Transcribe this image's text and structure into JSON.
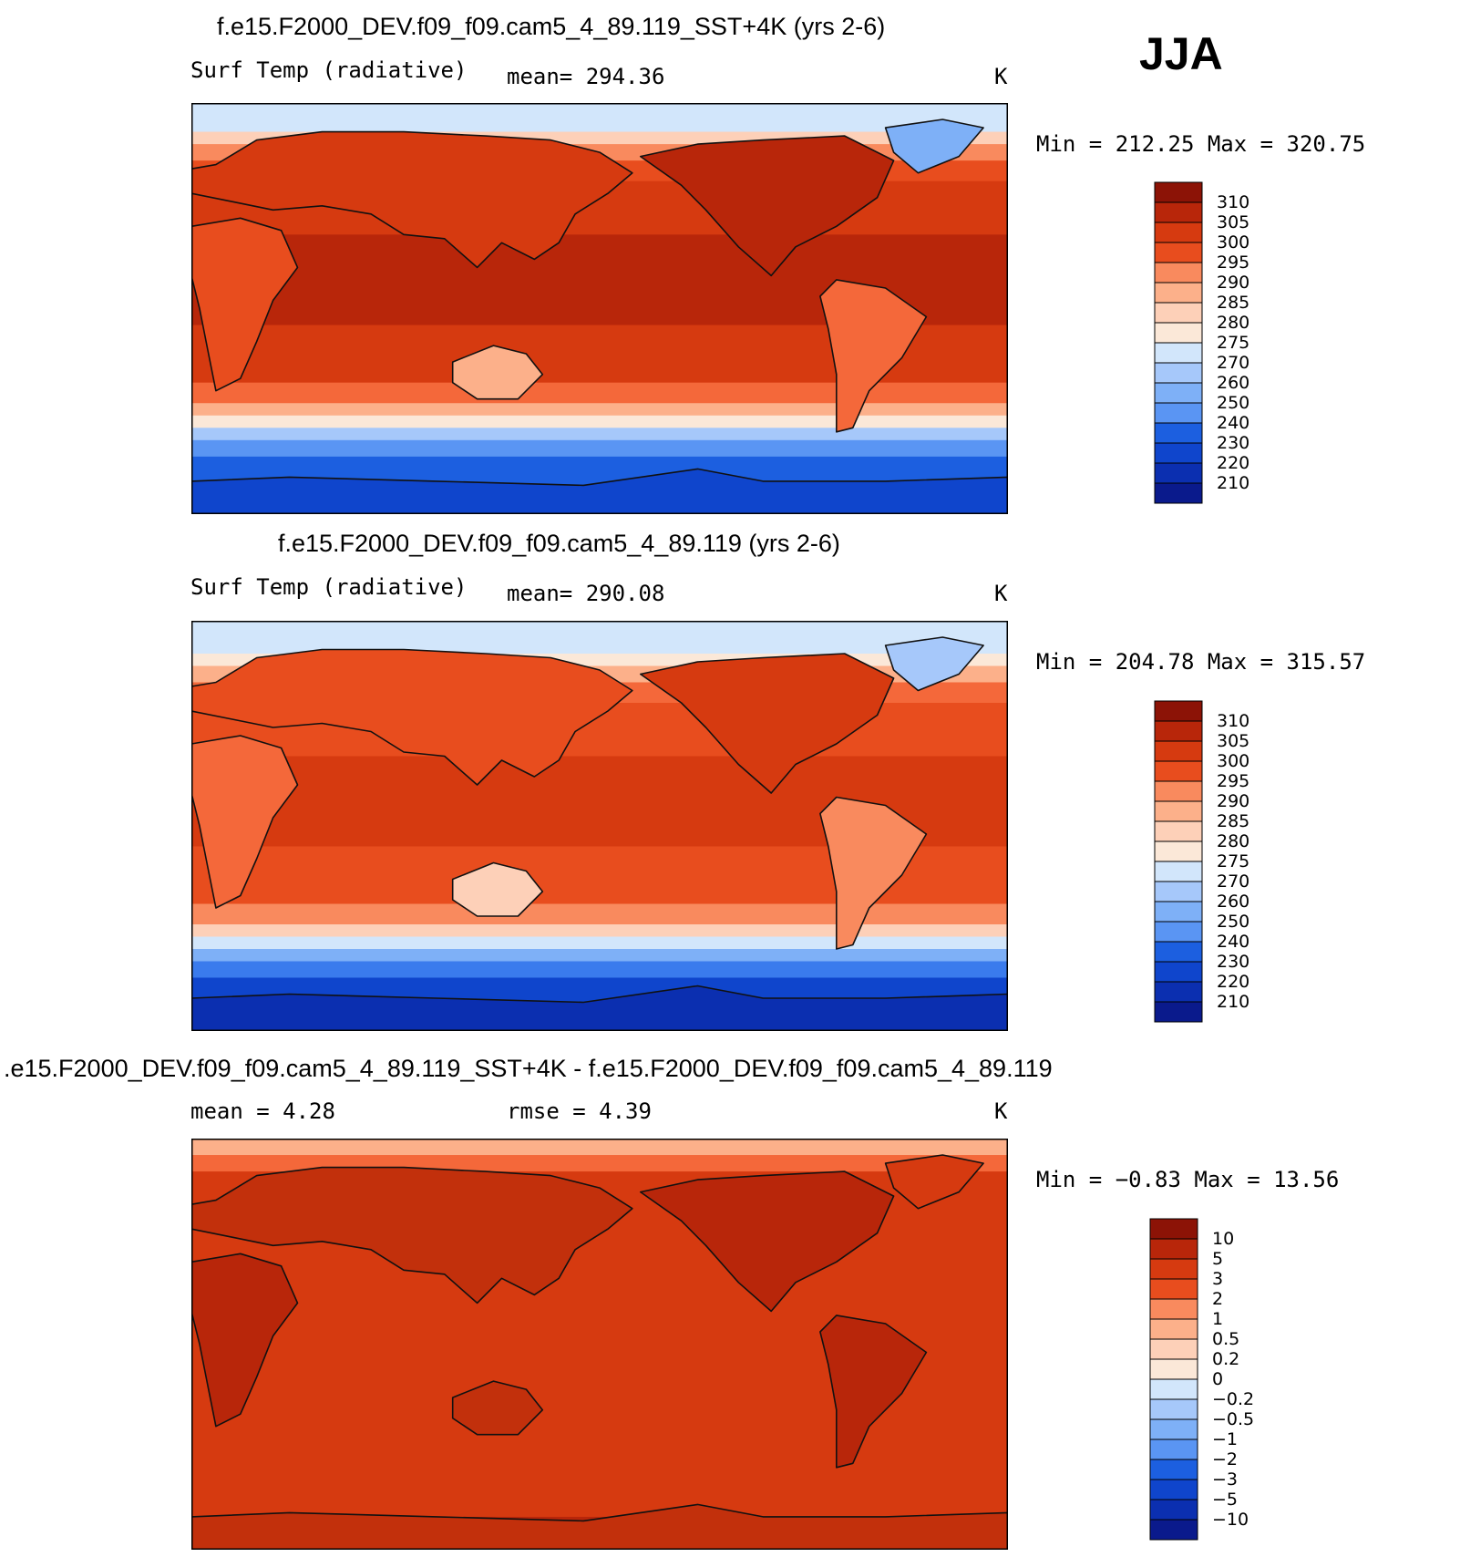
{
  "season": "JJA",
  "colormaps": {
    "abs": [
      "#0a1a8c",
      "#0b2fb0",
      "#0f45cc",
      "#1c5fe0",
      "#3a7bed",
      "#5a95f3",
      "#7eb0f7",
      "#a6c8fa",
      "#d2e6fb",
      "#fbe8d8",
      "#fdd0b8",
      "#fcb08a",
      "#f98a5e",
      "#f4683a",
      "#e84d1e",
      "#d63a10",
      "#b8260a",
      "#8c1306"
    ],
    "diff": [
      "#0a1a8c",
      "#0b2fb0",
      "#0f45cc",
      "#1c5fe0",
      "#3a7bed",
      "#5a95f3",
      "#7eb0f7",
      "#a6c8fa",
      "#d2e6fb",
      "#fbe8d8",
      "#fdd0b8",
      "#fcb08a",
      "#f98a5e",
      "#f4683a",
      "#e84d1e",
      "#d63a10",
      "#b8260a",
      "#8c1306"
    ]
  },
  "chart_data": [
    {
      "type": "heatmap",
      "title": "f.e15.F2000_DEV.f09_f09.cam5_4_89.119_SST+4K (yrs 2-6)",
      "left_label": "Surf Temp (radiative)",
      "stat_label": "mean= 294.36",
      "units": "K",
      "minmax": "Min = 212.25 Max = 320.75",
      "min": 212.25,
      "max": 320.75,
      "mean": 294.36,
      "colorbar_levels": [
        "310",
        "305",
        "300",
        "295",
        "290",
        "285",
        "280",
        "275",
        "270",
        "260",
        "250",
        "240",
        "230",
        "220",
        "210"
      ]
    },
    {
      "type": "heatmap",
      "title": "f.e15.F2000_DEV.f09_f09.cam5_4_89.119 (yrs 2-6)",
      "left_label": "Surf Temp (radiative)",
      "stat_label": "mean= 290.08",
      "units": "K",
      "minmax": "Min = 204.78 Max = 315.57",
      "min": 204.78,
      "max": 315.57,
      "mean": 290.08,
      "colorbar_levels": [
        "310",
        "305",
        "300",
        "295",
        "290",
        "285",
        "280",
        "275",
        "270",
        "260",
        "250",
        "240",
        "230",
        "220",
        "210"
      ]
    },
    {
      "type": "heatmap",
      "title": ".e15.F2000_DEV.f09_f09.cam5_4_89.119_SST+4K - f.e15.F2000_DEV.f09_f09.cam5_4_89.119",
      "left_label": "mean =    4.28",
      "stat_label": "rmse =    4.39",
      "units": "K",
      "minmax": "Min =  −0.83 Max =  13.56",
      "min": -0.83,
      "max": 13.56,
      "mean": 4.28,
      "rmse": 4.39,
      "colorbar_levels": [
        "10",
        "5",
        "3",
        "2",
        "1",
        "0.5",
        "0.2",
        "0",
        "−0.2",
        "−0.5",
        "−1",
        "−2",
        "−3",
        "−5",
        "−10"
      ]
    }
  ]
}
